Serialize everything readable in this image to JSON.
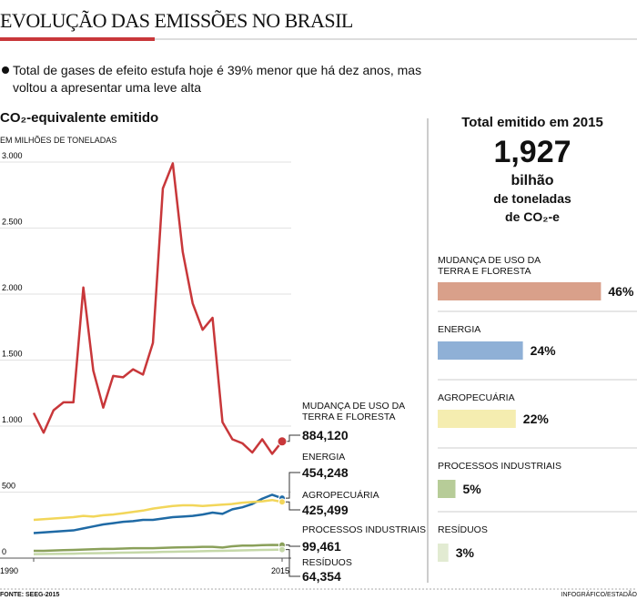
{
  "header": {
    "title": "EVOLUÇÃO DAS EMISSÕES NO BRASIL",
    "subtitle": "Total de gases de efeito estufa hoje é 39% menor que há dez anos, mas voltou a apresentar uma leve alta",
    "source": "FONTE: SEEG-2015",
    "credit": "INFOGRÁFICO/ESTADÃO"
  },
  "chart_data": [
    {
      "type": "line",
      "title": "CO₂-equivalente emitido",
      "y_label": "EM MILHÕES DE TONELADAS",
      "x": [
        1990,
        1991,
        1992,
        1993,
        1994,
        1995,
        1996,
        1997,
        1998,
        1999,
        2000,
        2001,
        2002,
        2003,
        2004,
        2005,
        2006,
        2007,
        2008,
        2009,
        2010,
        2011,
        2012,
        2013,
        2014,
        2015
      ],
      "xlim": [
        1990,
        2015
      ],
      "xticks": [
        1990,
        2015
      ],
      "ylim": [
        0,
        3000
      ],
      "yticks": [
        0,
        500,
        {
          "value": 1000,
          "label": "1.000"
        },
        {
          "value": 1500,
          "label": "1.500"
        },
        {
          "value": 2000,
          "label": "2.000"
        },
        {
          "value": 2500,
          "label": "2.500"
        },
        {
          "value": 3000,
          "label": "3.000"
        }
      ],
      "grid": true,
      "series": [
        {
          "name": "MUDANÇA DE USO DA TERRA E FLORESTA",
          "color": "#c8373a",
          "values": [
            1100,
            950,
            1120,
            1180,
            1180,
            2050,
            1420,
            1140,
            1380,
            1370,
            1430,
            1390,
            1630,
            2800,
            2990,
            2320,
            1930,
            1730,
            1820,
            1030,
            900,
            870,
            800,
            900,
            790,
            884.12
          ],
          "value_labels": [
            null,
            null,
            null,
            null,
            null,
            null,
            null,
            null,
            null,
            null,
            null,
            null,
            null,
            null,
            null,
            null,
            null,
            null,
            null,
            null,
            null,
            null,
            null,
            null,
            null,
            "884,120"
          ]
        },
        {
          "name": "ENERGIA",
          "color": "#1f6aa5",
          "values": [
            190,
            195,
            200,
            205,
            210,
            225,
            240,
            255,
            265,
            275,
            280,
            290,
            290,
            300,
            310,
            315,
            320,
            330,
            345,
            335,
            370,
            385,
            410,
            450,
            480,
            454.248
          ],
          "value_labels": [
            null,
            null,
            null,
            null,
            null,
            null,
            null,
            null,
            null,
            null,
            null,
            null,
            null,
            null,
            null,
            null,
            null,
            null,
            null,
            null,
            null,
            null,
            null,
            null,
            null,
            "454,248"
          ]
        },
        {
          "name": "AGROPECUÁRIA",
          "color": "#f2d65a",
          "values": [
            290,
            295,
            300,
            305,
            310,
            320,
            315,
            325,
            330,
            340,
            350,
            360,
            375,
            385,
            395,
            400,
            400,
            395,
            400,
            405,
            410,
            420,
            425,
            430,
            440,
            425.499
          ],
          "value_labels": [
            null,
            null,
            null,
            null,
            null,
            null,
            null,
            null,
            null,
            null,
            null,
            null,
            null,
            null,
            null,
            null,
            null,
            null,
            null,
            null,
            null,
            null,
            null,
            null,
            null,
            "425,499"
          ]
        },
        {
          "name": "PROCESSOS INDUSTRIAIS",
          "color": "#8aa05a",
          "values": [
            55,
            55,
            58,
            60,
            62,
            65,
            67,
            70,
            70,
            72,
            75,
            75,
            75,
            78,
            80,
            82,
            83,
            85,
            85,
            80,
            90,
            95,
            95,
            98,
            100,
            99.461
          ],
          "value_labels": [
            null,
            null,
            null,
            null,
            null,
            null,
            null,
            null,
            null,
            null,
            null,
            null,
            null,
            null,
            null,
            null,
            null,
            null,
            null,
            null,
            null,
            null,
            null,
            null,
            null,
            "99,461"
          ]
        },
        {
          "name": "RESÍDUOS",
          "color": "#c5d8a8",
          "values": [
            30,
            31,
            32,
            33,
            34,
            36,
            37,
            38,
            40,
            41,
            42,
            44,
            45,
            47,
            48,
            50,
            51,
            53,
            54,
            55,
            57,
            59,
            60,
            62,
            63,
            64.354
          ],
          "value_labels": [
            null,
            null,
            null,
            null,
            null,
            null,
            null,
            null,
            null,
            null,
            null,
            null,
            null,
            null,
            null,
            null,
            null,
            null,
            null,
            null,
            null,
            null,
            null,
            null,
            null,
            "64,354"
          ]
        }
      ]
    },
    {
      "type": "bar",
      "title": "Total emitido em 2015",
      "highlight": "1,927",
      "highlight_text": [
        "bilhão",
        "de toneladas",
        "de CO₂-e"
      ],
      "categories": [
        "MUDANÇA DE USO DA TERRA E FLORESTA",
        "ENERGIA",
        "AGROPECUÁRIA",
        "PROCESSOS INDUSTRIAIS",
        "RESÍDUOS"
      ],
      "values": [
        46,
        24,
        22,
        5,
        3
      ],
      "value_labels": [
        "46%",
        "24%",
        "22%",
        "5%",
        "3%"
      ],
      "colors": [
        "#d9a08a",
        "#8fb0d6",
        "#f5edb0",
        "#b7cc98",
        "#e2ebd2"
      ]
    }
  ]
}
